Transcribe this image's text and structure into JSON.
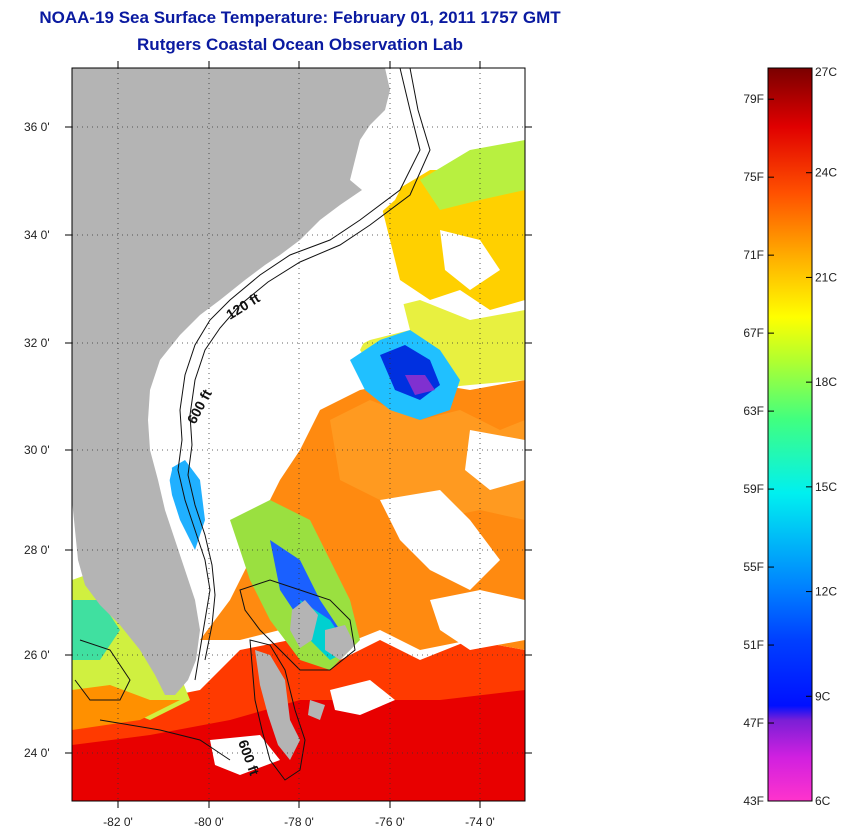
{
  "header": {
    "title": "NOAA-19 Sea Surface Temperature:  February 01, 2011 1757 GMT",
    "subtitle": "Rutgers Coastal Ocean Observation Lab"
  },
  "map": {
    "lat_labels": [
      "36 0'",
      "34 0'",
      "32 0'",
      "30 0'",
      "28 0'",
      "26 0'",
      "24 0'"
    ],
    "lon_labels": [
      "-82 0'",
      "-80 0'",
      "-78 0'",
      "-76 0'",
      "-74 0'"
    ],
    "lat_range": [
      23,
      37.1
    ],
    "lon_range": [
      -83,
      -73
    ],
    "contours": [
      "120 ft",
      "600 ft",
      "600 ft"
    ]
  },
  "colorbar": {
    "celsius": [
      "27C",
      "24C",
      "21C",
      "18C",
      "15C",
      "12C",
      "9C",
      "6C"
    ],
    "fahrenheit": [
      "79F",
      "75F",
      "71F",
      "67F",
      "63F",
      "59F",
      "55F",
      "51F",
      "47F",
      "43F"
    ],
    "range_c": [
      6,
      27
    ],
    "range_f": [
      43,
      80.6
    ],
    "colors": [
      "#ff33cc",
      "#7b1fd6",
      "#0010ff",
      "#0070ff",
      "#00e5ff",
      "#66ff66",
      "#ffff00",
      "#ffb000",
      "#ff4000",
      "#e00000",
      "#8b0000"
    ]
  }
}
